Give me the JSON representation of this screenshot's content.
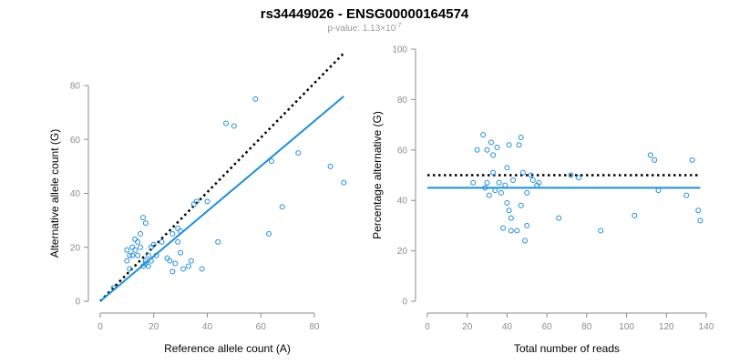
{
  "title": "rs34449026 - ENSG00000164574",
  "subtitle": {
    "prefix": "p-value: 1.13×10",
    "exponent": "-7"
  },
  "colors": {
    "points": "#1f8ed8",
    "fit_line": "#1f8ed8",
    "reference_line": "#000000",
    "axis": "#8c8c8c"
  },
  "chart_data": [
    {
      "type": "scatter",
      "xlabel": "Reference allele count (A)",
      "ylabel": "Alternative allele count (G)",
      "xlim": [
        0,
        95
      ],
      "ylim": [
        0,
        80
      ],
      "xticks": [
        0,
        20,
        40,
        60,
        80
      ],
      "yticks": [
        0,
        20,
        40,
        60,
        80
      ],
      "grid": false,
      "points": [
        [
          5,
          5
        ],
        [
          10,
          19
        ],
        [
          10,
          15
        ],
        [
          11,
          17
        ],
        [
          11,
          12
        ],
        [
          12,
          20
        ],
        [
          12,
          17
        ],
        [
          13,
          19
        ],
        [
          13,
          23
        ],
        [
          14,
          17
        ],
        [
          14,
          22
        ],
        [
          15,
          20
        ],
        [
          15,
          25
        ],
        [
          16,
          31
        ],
        [
          16,
          13
        ],
        [
          17,
          15
        ],
        [
          17,
          29
        ],
        [
          17,
          14
        ],
        [
          18,
          13
        ],
        [
          18,
          17
        ],
        [
          19,
          20
        ],
        [
          19,
          15
        ],
        [
          20,
          21
        ],
        [
          21,
          17
        ],
        [
          23,
          22
        ],
        [
          25,
          16
        ],
        [
          26,
          15
        ],
        [
          27,
          11
        ],
        [
          27,
          25
        ],
        [
          28,
          14
        ],
        [
          29,
          27
        ],
        [
          29,
          22
        ],
        [
          30,
          26
        ],
        [
          30,
          18
        ],
        [
          31,
          12
        ],
        [
          33,
          13
        ],
        [
          34,
          15
        ],
        [
          35,
          36
        ],
        [
          36,
          37
        ],
        [
          38,
          12
        ],
        [
          40,
          37
        ],
        [
          44,
          22
        ],
        [
          47,
          66
        ],
        [
          50,
          65
        ],
        [
          58,
          75
        ],
        [
          63,
          25
        ],
        [
          64,
          52
        ],
        [
          68,
          35
        ],
        [
          74,
          55
        ],
        [
          86,
          50
        ],
        [
          91,
          44
        ]
      ],
      "fit_line": [
        [
          0,
          0
        ],
        [
          91,
          76
        ]
      ],
      "reference_line": [
        [
          0,
          0
        ],
        [
          91,
          92
        ]
      ]
    },
    {
      "type": "scatter",
      "xlabel": "Total number of reads",
      "ylabel": "Percentage alternative (G)",
      "xlim": [
        0,
        140
      ],
      "ylim": [
        0,
        100
      ],
      "xticks": [
        0,
        20,
        40,
        60,
        80,
        100,
        120,
        140
      ],
      "yticks": [
        0,
        20,
        40,
        60,
        80,
        100
      ],
      "grid": false,
      "points": [
        [
          23,
          47
        ],
        [
          25,
          60
        ],
        [
          28,
          66
        ],
        [
          29,
          45
        ],
        [
          30,
          60
        ],
        [
          30,
          47
        ],
        [
          31,
          42
        ],
        [
          32,
          63
        ],
        [
          33,
          58
        ],
        [
          33,
          51
        ],
        [
          34,
          44
        ],
        [
          35,
          61
        ],
        [
          36,
          47
        ],
        [
          37,
          43
        ],
        [
          38,
          29
        ],
        [
          39,
          46
        ],
        [
          40,
          53
        ],
        [
          40,
          39
        ],
        [
          41,
          36
        ],
        [
          41,
          62
        ],
        [
          42,
          28
        ],
        [
          42,
          33
        ],
        [
          43,
          48
        ],
        [
          45,
          28
        ],
        [
          46,
          62
        ],
        [
          47,
          38
        ],
        [
          47,
          65
        ],
        [
          48,
          51
        ],
        [
          49,
          24
        ],
        [
          50,
          30
        ],
        [
          50,
          43
        ],
        [
          52,
          50
        ],
        [
          53,
          48
        ],
        [
          55,
          46
        ],
        [
          56,
          47
        ],
        [
          66,
          33
        ],
        [
          72,
          50
        ],
        [
          76,
          49
        ],
        [
          87,
          28
        ],
        [
          104,
          34
        ],
        [
          112,
          58
        ],
        [
          114,
          56
        ],
        [
          116,
          44
        ],
        [
          130,
          42
        ],
        [
          133,
          56
        ],
        [
          136,
          36
        ],
        [
          137,
          32
        ]
      ],
      "fit_line": [
        [
          0,
          45
        ],
        [
          137,
          45
        ]
      ],
      "reference_line": [
        [
          0,
          50
        ],
        [
          137,
          50
        ]
      ]
    }
  ]
}
